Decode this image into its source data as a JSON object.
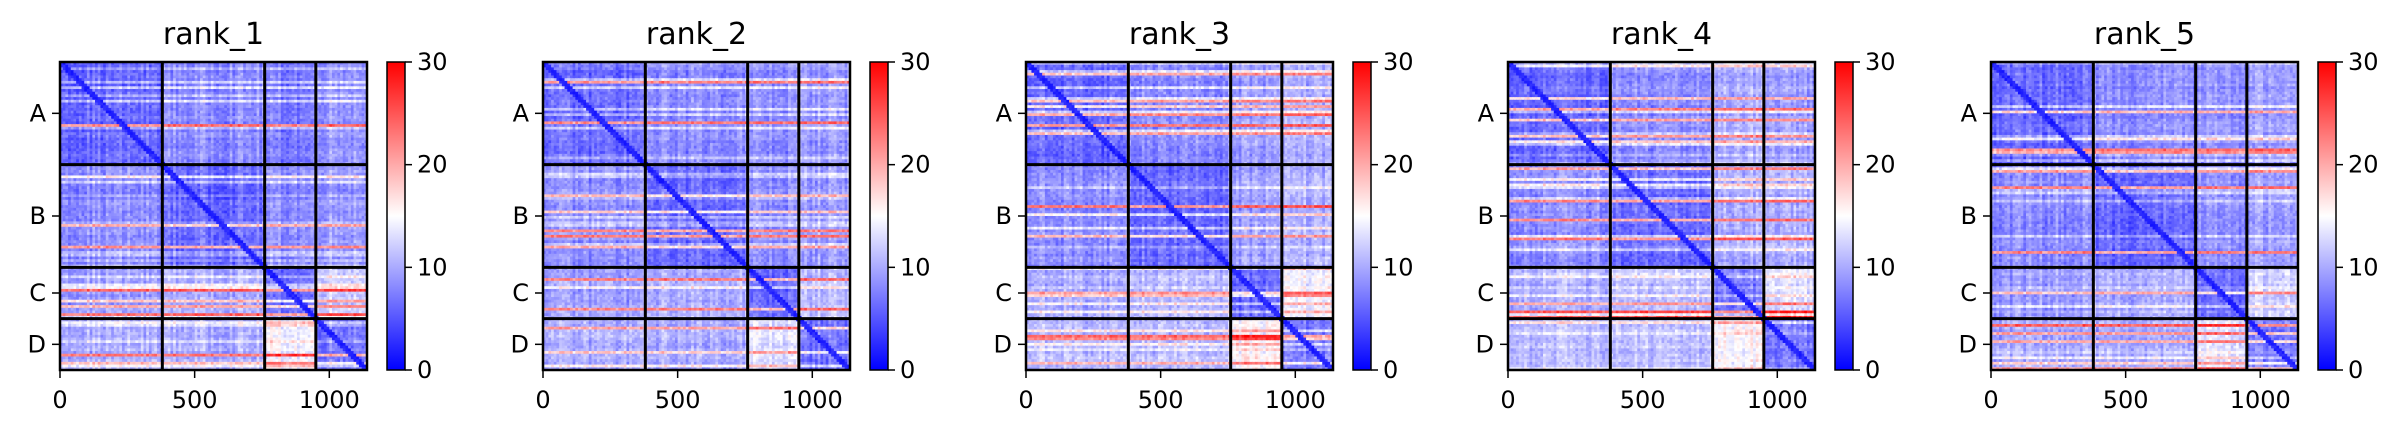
{
  "chart_data": [
    {
      "type": "heatmap",
      "title": "rank_1",
      "row_labels": [
        "A",
        "B",
        "C",
        "D"
      ],
      "xticks": [
        0,
        500,
        1000
      ],
      "xlim": [
        0,
        1140
      ],
      "block_boundaries": [
        380,
        760,
        950
      ],
      "colorbar": {
        "min": 0,
        "max": 30,
        "ticks": [
          0,
          10,
          20,
          30
        ],
        "colormap": "bwr"
      },
      "block_mean_values": [
        [
          4,
          6,
          5,
          7
        ],
        [
          6,
          4,
          6,
          7
        ],
        [
          7,
          8,
          4,
          10
        ],
        [
          8,
          8,
          12,
          5
        ]
      ]
    },
    {
      "type": "heatmap",
      "title": "rank_2",
      "row_labels": [
        "A",
        "B",
        "C",
        "D"
      ],
      "xticks": [
        0,
        500,
        1000
      ],
      "xlim": [
        0,
        1140
      ],
      "block_boundaries": [
        380,
        760,
        950
      ],
      "colorbar": {
        "min": 0,
        "max": 30,
        "ticks": [
          0,
          10,
          20,
          30
        ],
        "colormap": "bwr"
      },
      "block_mean_values": [
        [
          4,
          6,
          6,
          7
        ],
        [
          6,
          4,
          6,
          7
        ],
        [
          7,
          8,
          4,
          9
        ],
        [
          8,
          8,
          11,
          5
        ]
      ]
    },
    {
      "type": "heatmap",
      "title": "rank_3",
      "row_labels": [
        "A",
        "B",
        "C",
        "D"
      ],
      "xticks": [
        0,
        500,
        1000
      ],
      "xlim": [
        0,
        1140
      ],
      "block_boundaries": [
        380,
        760,
        950
      ],
      "colorbar": {
        "min": 0,
        "max": 30,
        "ticks": [
          0,
          10,
          20,
          30
        ],
        "colormap": "bwr"
      },
      "block_mean_values": [
        [
          4,
          6,
          7,
          8
        ],
        [
          6,
          4,
          7,
          8
        ],
        [
          8,
          9,
          4,
          12
        ],
        [
          9,
          9,
          13,
          5
        ]
      ]
    },
    {
      "type": "heatmap",
      "title": "rank_4",
      "row_labels": [
        "A",
        "B",
        "C",
        "D"
      ],
      "xticks": [
        0,
        500,
        1000
      ],
      "xlim": [
        0,
        1140
      ],
      "block_boundaries": [
        380,
        760,
        950
      ],
      "colorbar": {
        "min": 0,
        "max": 30,
        "ticks": [
          0,
          10,
          20,
          30
        ],
        "colormap": "bwr"
      },
      "block_mean_values": [
        [
          4,
          6,
          8,
          7
        ],
        [
          6,
          4,
          8,
          8
        ],
        [
          8,
          9,
          5,
          11
        ],
        [
          9,
          9,
          13,
          5
        ]
      ]
    },
    {
      "type": "heatmap",
      "title": "rank_5",
      "row_labels": [
        "A",
        "B",
        "C",
        "D"
      ],
      "xticks": [
        0,
        500,
        1000
      ],
      "xlim": [
        0,
        1140
      ],
      "block_boundaries": [
        380,
        760,
        950
      ],
      "colorbar": {
        "min": 0,
        "max": 30,
        "ticks": [
          0,
          10,
          20,
          30
        ],
        "colormap": "bwr"
      },
      "block_mean_values": [
        [
          4,
          6,
          6,
          7
        ],
        [
          6,
          4,
          6,
          7
        ],
        [
          7,
          8,
          4,
          10
        ],
        [
          8,
          8,
          11,
          5
        ]
      ]
    }
  ]
}
